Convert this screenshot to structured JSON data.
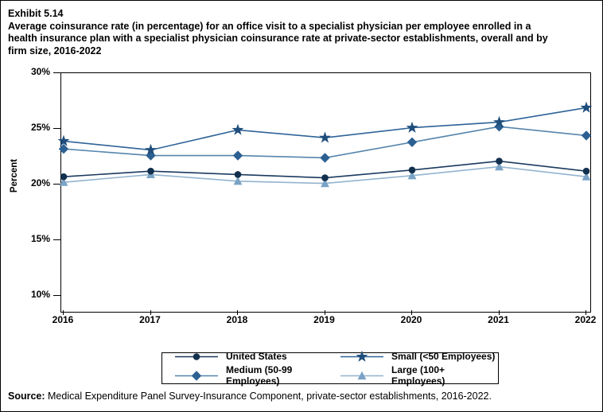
{
  "header": {
    "exhibit": "Exhibit 5.14",
    "title_lines": [
      "Average coinsurance rate (in percentage) for an office visit to a specialist physician per employee enrolled in a",
      "health insurance plan with a specialist physician coinsurance rate at private-sector establishments, overall and by",
      "firm size, 2016-2022"
    ]
  },
  "chart_data": {
    "type": "line",
    "title": "Average coinsurance rate (in percentage) for an office visit to a specialist physician per employee enrolled in a health insurance plan with a specialist physician coinsurance rate at private-sector establishments, overall and by firm size, 2016-2022",
    "ylabel": "Percent",
    "ylim": [
      10,
      30
    ],
    "yticks": [
      30,
      25,
      20,
      15,
      10
    ],
    "ytick_labels": [
      "30%",
      "25%",
      "20%",
      "15%",
      "10%"
    ],
    "x_labels": [
      "2016",
      "2017",
      "2018",
      "2019",
      "2020",
      "2021",
      "2022"
    ],
    "grid": false,
    "legend_position": "bottom",
    "series": [
      {
        "name": "United States",
        "marker": "circle",
        "marker_color": "#12304e",
        "line_color": "#1b3a5f",
        "values": [
          20.7,
          21.2,
          20.9,
          20.6,
          21.3,
          22.1,
          21.2
        ]
      },
      {
        "name": "Medium (50-99 Employees)",
        "marker": "diamond",
        "marker_color": "#2d6092",
        "line_color": "#5585ad",
        "values": [
          23.2,
          22.6,
          22.6,
          22.4,
          23.8,
          25.2,
          24.4
        ]
      },
      {
        "name": "Small (<50 Employees)",
        "marker": "star",
        "marker_color": "#1f4e7c",
        "line_color": "#2e6398",
        "values": [
          23.9,
          23.1,
          24.9,
          24.2,
          25.1,
          25.6,
          26.9
        ]
      },
      {
        "name": "Large (100+ Employees)",
        "marker": "triangle",
        "marker_color": "#7aa3c6",
        "line_color": "#93b4cf",
        "values": [
          20.2,
          20.9,
          20.3,
          20.1,
          20.8,
          21.6,
          20.7
        ]
      }
    ]
  },
  "source": {
    "label": "Source:",
    "text": " Medical Expenditure Panel Survey-Insurance Component, private-sector establishments, 2016-2022."
  }
}
